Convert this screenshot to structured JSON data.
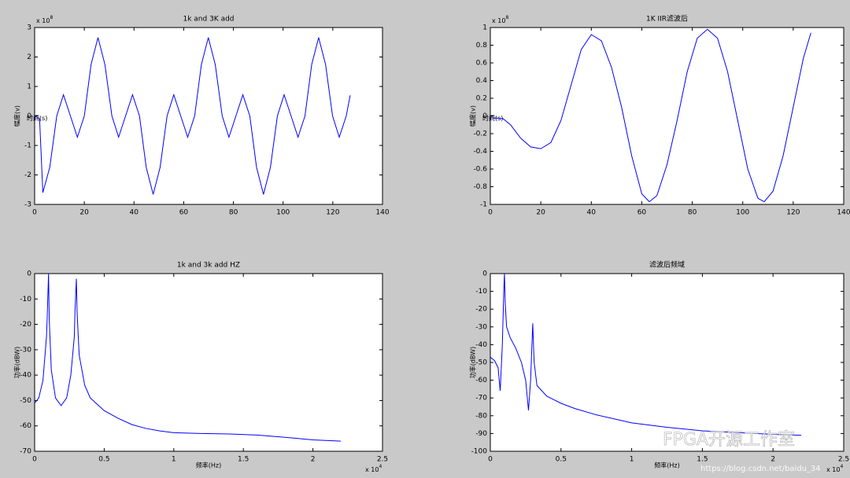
{
  "chart_data": [
    {
      "type": "line",
      "title": "1k and 3K add",
      "xlabel": "时间(s)",
      "ylabel": "幅度(v)",
      "yscale_base": "x 10",
      "yscale_exp": "8",
      "x": [
        0,
        2,
        3.3,
        6.1,
        8.9,
        11.6,
        14.4,
        17.2,
        20.0,
        22.7,
        25.5,
        28.3,
        31.1,
        33.8,
        36.6,
        39.4,
        42.2,
        44.9,
        47.7,
        50.5,
        53.3,
        56.0,
        58.8,
        61.6,
        64.4,
        67.1,
        69.9,
        72.7,
        75.5,
        78.2,
        81.0,
        83.8,
        86.6,
        89.3,
        92.1,
        94.9,
        97.7,
        100.4,
        103.2,
        106.0,
        108.8,
        111.5,
        114.3,
        117.1,
        119.9,
        122.6,
        125.4,
        127
      ],
      "series": [
        {
          "color": "#0000ff",
          "values": [
            0,
            -0.1,
            -2.6,
            -1.74,
            0,
            0.72,
            0,
            -0.72,
            0,
            1.74,
            2.66,
            1.74,
            0,
            -0.72,
            0,
            0.72,
            0,
            -1.74,
            -2.66,
            -1.74,
            0,
            0.72,
            0,
            -0.72,
            0,
            1.74,
            2.66,
            1.74,
            0,
            -0.72,
            0,
            0.72,
            0,
            -1.74,
            -2.66,
            -1.74,
            0,
            0.72,
            0,
            -0.72,
            0,
            1.74,
            2.66,
            1.74,
            0,
            -0.72,
            0,
            0.7
          ]
        }
      ],
      "xlim": [
        0,
        140
      ],
      "xticks": [
        0,
        20,
        40,
        60,
        80,
        100,
        120,
        140
      ],
      "ylim": [
        -3,
        3
      ],
      "yticks": [
        -3,
        -2,
        -1,
        0,
        1,
        2,
        3
      ]
    },
    {
      "type": "line",
      "title": "1K IIR滤波后",
      "xlabel": "时间(s)",
      "ylabel": "幅度(v)",
      "yscale_base": "x 10",
      "yscale_exp": "8",
      "x": [
        0,
        5,
        8,
        12,
        16,
        20,
        24,
        28,
        32,
        36,
        40,
        44,
        48,
        52,
        56,
        60,
        63,
        66,
        70,
        74,
        78,
        82,
        86,
        90,
        94,
        98,
        102,
        106,
        108.5,
        112,
        116,
        120,
        124,
        127
      ],
      "series": [
        {
          "color": "#0000ff",
          "values": [
            -0.02,
            -0.03,
            -0.1,
            -0.25,
            -0.35,
            -0.37,
            -0.3,
            -0.05,
            0.35,
            0.75,
            0.92,
            0.85,
            0.55,
            0.1,
            -0.45,
            -0.88,
            -0.97,
            -0.9,
            -0.55,
            -0.05,
            0.5,
            0.88,
            0.98,
            0.88,
            0.5,
            -0.05,
            -0.6,
            -0.93,
            -0.97,
            -0.85,
            -0.45,
            0.1,
            0.65,
            0.94
          ]
        }
      ],
      "xlim": [
        0,
        140
      ],
      "xticks": [
        0,
        20,
        40,
        60,
        80,
        100,
        120,
        140
      ],
      "ylim": [
        -1,
        1
      ],
      "yticks": [
        -1,
        -0.8,
        -0.6,
        -0.4,
        -0.2,
        0,
        0.2,
        0.4,
        0.6,
        0.8,
        1
      ]
    },
    {
      "type": "line",
      "title": "1k and 3k add HZ",
      "xlabel": "频率(Hz)",
      "ylabel": "功率(dBW)",
      "xscale_base": "x 10",
      "xscale_exp": "4",
      "x": [
        0,
        0.03,
        0.06,
        0.085,
        0.09,
        0.1,
        0.105,
        0.12,
        0.15,
        0.19,
        0.23,
        0.26,
        0.285,
        0.29,
        0.3,
        0.305,
        0.32,
        0.36,
        0.4,
        0.5,
        0.6,
        0.7,
        0.8,
        0.9,
        1.0,
        1.2,
        1.4,
        1.6,
        1.8,
        2.0,
        2.2
      ],
      "series": [
        {
          "color": "#0000ff",
          "values": [
            -51,
            -49,
            -42,
            -25,
            -18,
            0,
            -18,
            -38,
            -49,
            -52,
            -49,
            -40,
            -25,
            -15,
            -2,
            -15,
            -32,
            -44,
            -49,
            -54,
            -57,
            -59.5,
            -61,
            -62,
            -62.7,
            -63,
            -63.2,
            -63.6,
            -64.5,
            -65.5,
            -66
          ]
        }
      ],
      "xlim": [
        0,
        2.5
      ],
      "xticks": [
        0,
        0.5,
        1,
        1.5,
        2,
        2.5
      ],
      "ylim": [
        -70,
        0
      ],
      "yticks": [
        -70,
        -60,
        -50,
        -40,
        -30,
        -20,
        -10,
        0
      ]
    },
    {
      "type": "line",
      "title": "滤波后频域",
      "xlabel": "频率(Hz)",
      "ylabel": "功率(dBW)",
      "xscale_base": "x 10",
      "xscale_exp": "4",
      "x": [
        0,
        0.03,
        0.055,
        0.07,
        0.085,
        0.095,
        0.1,
        0.105,
        0.115,
        0.14,
        0.18,
        0.22,
        0.25,
        0.27,
        0.285,
        0.3,
        0.31,
        0.33,
        0.4,
        0.5,
        0.6,
        0.75,
        1.0,
        1.25,
        1.5,
        1.75,
        2.0,
        2.2
      ],
      "series": [
        {
          "color": "#0000ff",
          "values": [
            -47,
            -49,
            -53,
            -66,
            -40,
            -10,
            0,
            -16,
            -30,
            -36,
            -42,
            -50,
            -60,
            -77,
            -60,
            -28,
            -50,
            -63,
            -69,
            -73,
            -76,
            -79.5,
            -84,
            -86.5,
            -88.5,
            -89.5,
            -90.5,
            -91
          ]
        }
      ],
      "xlim": [
        0,
        2.5
      ],
      "xticks": [
        0,
        0.5,
        1,
        1.5,
        2,
        2.5
      ],
      "ylim": [
        -100,
        0
      ],
      "yticks": [
        -100,
        -90,
        -80,
        -70,
        -60,
        -50,
        -40,
        -30,
        -20,
        -10,
        0
      ]
    }
  ],
  "watermark": {
    "text": "FPGA开源工作室",
    "url": "https://blog.csdn.net/baidu_34"
  }
}
